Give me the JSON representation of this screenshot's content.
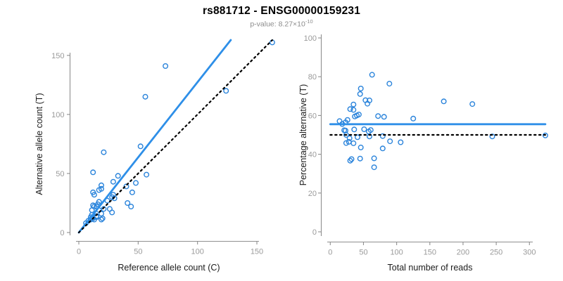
{
  "header": {
    "title": "rs881712 - ENSG00000159231",
    "pvalue_label": "p-value: ",
    "pvalue_base": "8.27×10",
    "pvalue_exponent": "-10"
  },
  "colors": {
    "point_blue": "#2b84db",
    "line_blue": "#2e8fe8",
    "dotted_black": "#000000",
    "axis_gray": "#8f8f8f",
    "tick_label_gray": "#9a9a9a",
    "axis_title": "#1c1c1c",
    "title_black": "#000000",
    "subtitle_gray": "#8c8c8c"
  },
  "chart_data": [
    {
      "type": "scatter",
      "title": "rs881712 - ENSG00000159231",
      "subtitle": "p-value: 8.27×10^-10",
      "xlabel": "Reference allele count (C)",
      "ylabel": "Alternative allele count (T)",
      "xlim": [
        0,
        165
      ],
      "ylim": [
        0,
        165
      ],
      "xticks": [
        0,
        50,
        100,
        150
      ],
      "yticks": [
        0,
        50,
        100,
        150
      ],
      "grid": false,
      "legend": null,
      "points": [
        [
          163,
          161
        ],
        [
          124,
          120
        ],
        [
          73,
          141
        ],
        [
          56,
          115
        ],
        [
          52,
          73
        ],
        [
          57,
          49
        ],
        [
          48,
          42
        ],
        [
          21,
          68
        ],
        [
          33,
          48
        ],
        [
          45,
          34
        ],
        [
          40,
          39
        ],
        [
          29,
          43
        ],
        [
          41,
          25
        ],
        [
          44,
          22
        ],
        [
          12,
          51
        ],
        [
          29,
          32
        ],
        [
          30,
          29
        ],
        [
          28,
          30
        ],
        [
          19,
          37
        ],
        [
          19,
          40
        ],
        [
          17,
          36
        ],
        [
          24,
          27
        ],
        [
          26,
          20
        ],
        [
          12,
          34
        ],
        [
          13,
          32
        ],
        [
          28,
          17
        ],
        [
          17,
          26
        ],
        [
          21,
          20
        ],
        [
          16,
          24
        ],
        [
          15,
          22
        ],
        [
          17,
          19
        ],
        [
          12,
          23
        ],
        [
          13,
          22
        ],
        [
          19,
          16
        ],
        [
          20,
          12
        ],
        [
          11,
          19
        ],
        [
          19,
          11
        ],
        [
          15,
          14
        ],
        [
          15,
          13
        ],
        [
          11,
          15
        ],
        [
          13,
          11
        ],
        [
          12,
          12
        ],
        [
          11,
          12
        ],
        [
          10,
          13
        ],
        [
          10,
          11
        ],
        [
          6,
          8
        ],
        [
          8,
          10
        ]
      ],
      "lines": [
        {
          "name": "regression-line",
          "style": "solid",
          "color": "#2e8fe8",
          "x1": 0,
          "y1": 0,
          "x2": 128,
          "y2": 163
        },
        {
          "name": "identity-line",
          "style": "dotted",
          "color": "#000000",
          "x1": 0,
          "y1": 0,
          "x2": 163,
          "y2": 163
        }
      ]
    },
    {
      "type": "scatter",
      "xlabel": "Total number of reads",
      "ylabel": "Percentage alternative (T)",
      "xlim": [
        0,
        324
      ],
      "ylim": [
        0,
        100
      ],
      "xticks": [
        0,
        50,
        100,
        150,
        200,
        250,
        300
      ],
      "yticks": [
        0,
        20,
        40,
        60,
        80,
        100
      ],
      "grid": false,
      "legend": null,
      "points": [
        [
          324,
          49.7
        ],
        [
          244,
          49.2
        ],
        [
          214,
          65.9
        ],
        [
          171,
          67.3
        ],
        [
          125,
          58.4
        ],
        [
          106,
          46.2
        ],
        [
          90,
          46.7
        ],
        [
          89,
          76.4
        ],
        [
          81,
          59.3
        ],
        [
          79,
          43.0
        ],
        [
          79,
          49.4
        ],
        [
          72,
          59.7
        ],
        [
          66,
          37.9
        ],
        [
          66,
          33.3
        ],
        [
          63,
          81.0
        ],
        [
          61,
          52.5
        ],
        [
          59,
          49.2
        ],
        [
          58,
          51.7
        ],
        [
          56,
          66.1
        ],
        [
          59,
          67.8
        ],
        [
          53,
          67.9
        ],
        [
          51,
          52.9
        ],
        [
          46,
          43.5
        ],
        [
          46,
          73.9
        ],
        [
          45,
          71.1
        ],
        [
          45,
          37.8
        ],
        [
          43,
          60.5
        ],
        [
          41,
          48.8
        ],
        [
          40,
          60.0
        ],
        [
          37,
          59.5
        ],
        [
          36,
          52.8
        ],
        [
          35,
          65.7
        ],
        [
          35,
          62.9
        ],
        [
          35,
          45.7
        ],
        [
          32,
          37.5
        ],
        [
          30,
          63.3
        ],
        [
          30,
          36.7
        ],
        [
          29,
          48.3
        ],
        [
          28,
          46.4
        ],
        [
          26,
          57.7
        ],
        [
          24,
          45.8
        ],
        [
          24,
          50.0
        ],
        [
          23,
          52.2
        ],
        [
          23,
          56.5
        ],
        [
          21,
          52.4
        ],
        [
          14,
          57.1
        ],
        [
          18,
          55.6
        ]
      ],
      "lines": [
        {
          "name": "mean-line",
          "style": "solid",
          "color": "#2e8fe8",
          "x1": 0,
          "y1": 55.5,
          "x2": 324,
          "y2": 55.5
        },
        {
          "name": "null-line",
          "style": "dotted",
          "color": "#000000",
          "x1": 0,
          "y1": 50,
          "x2": 324,
          "y2": 50
        }
      ]
    }
  ]
}
